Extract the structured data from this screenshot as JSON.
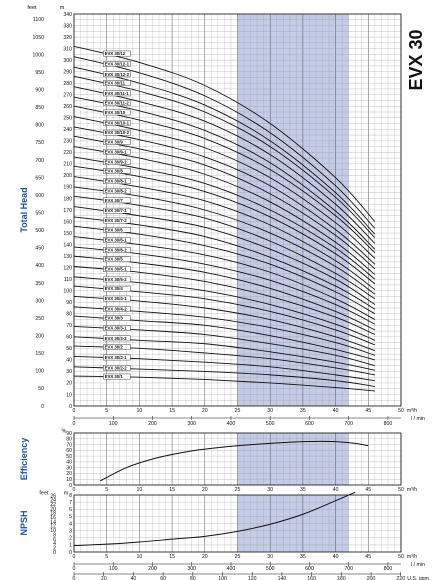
{
  "chart_data": [
    {
      "type": "line",
      "title": "EVX 30",
      "ylabel": "Total Head",
      "y_units_left": "feet",
      "y_units_right": "m",
      "x_units_top": "m³/h",
      "x_units_bottom": "l / min",
      "xlim": [
        0,
        50
      ],
      "ylim": [
        0,
        340
      ],
      "x_ticks": [
        0,
        5,
        10,
        15,
        20,
        25,
        30,
        35,
        40,
        45,
        50
      ],
      "x_lmin_ticks": [
        0,
        100,
        200,
        300,
        400,
        500,
        600,
        700,
        800
      ],
      "y_m_ticks": [
        0,
        10,
        20,
        30,
        40,
        50,
        60,
        70,
        80,
        90,
        100,
        110,
        120,
        130,
        140,
        150,
        160,
        170,
        180,
        190,
        200,
        210,
        220,
        230,
        240,
        250,
        260,
        270,
        280,
        290,
        300,
        310,
        320,
        330,
        340
      ],
      "y_feet_ticks": [
        0,
        50,
        100,
        150,
        200,
        250,
        300,
        350,
        400,
        450,
        500,
        550,
        600,
        650,
        700,
        750,
        800,
        850,
        900,
        950,
        1000,
        1050,
        1100
      ],
      "highlight_range": [
        25,
        42
      ],
      "grid": true,
      "series": [
        {
          "name": "EVX 30/12",
          "x": [
            0,
            10,
            20,
            30,
            40,
            46
          ],
          "values": [
            312,
            298,
            278,
            245,
            198,
            160
          ]
        },
        {
          "name": "EVX 30/12-1",
          "x": [
            0,
            10,
            20,
            30,
            40,
            46
          ],
          "values": [
            303,
            289,
            269,
            237,
            191,
            154
          ]
        },
        {
          "name": "EVX 30/12-2",
          "x": [
            0,
            10,
            20,
            30,
            40,
            46
          ],
          "values": [
            294,
            280,
            261,
            230,
            185,
            149
          ]
        },
        {
          "name": "EVX 30/11",
          "x": [
            0,
            10,
            20,
            30,
            40,
            46
          ],
          "values": [
            286,
            273,
            255,
            225,
            181,
            146
          ]
        },
        {
          "name": "EVX 30/11-1",
          "x": [
            0,
            10,
            20,
            30,
            40,
            46
          ],
          "values": [
            277,
            264,
            247,
            218,
            175,
            141
          ]
        },
        {
          "name": "EVX 30/11-2",
          "x": [
            0,
            10,
            20,
            30,
            40,
            46
          ],
          "values": [
            268,
            256,
            239,
            211,
            169,
            136
          ]
        },
        {
          "name": "EVX 30/10",
          "x": [
            0,
            10,
            20,
            30,
            40,
            46
          ],
          "values": [
            260,
            248,
            232,
            205,
            165,
            133
          ]
        },
        {
          "name": "EVX 30/10-1",
          "x": [
            0,
            10,
            20,
            30,
            40,
            46
          ],
          "values": [
            251,
            239,
            224,
            198,
            159,
            128
          ]
        },
        {
          "name": "EVX 30/10-2",
          "x": [
            0,
            10,
            20,
            30,
            40,
            46
          ],
          "values": [
            242,
            231,
            216,
            191,
            153,
            123
          ]
        },
        {
          "name": "EVX 30/9",
          "x": [
            0,
            10,
            20,
            30,
            40,
            46
          ],
          "values": [
            234,
            223,
            209,
            184,
            148,
            119
          ]
        },
        {
          "name": "EVX 30/9-1",
          "x": [
            0,
            10,
            20,
            30,
            40,
            46
          ],
          "values": [
            225,
            215,
            201,
            177,
            142,
            114
          ]
        },
        {
          "name": "EVX 30/9-2",
          "x": [
            0,
            10,
            20,
            30,
            40,
            46
          ],
          "values": [
            216,
            206,
            193,
            170,
            137,
            110
          ]
        },
        {
          "name": "EVX 30/8",
          "x": [
            0,
            10,
            20,
            30,
            40,
            46
          ],
          "values": [
            208,
            199,
            186,
            164,
            132,
            106
          ]
        },
        {
          "name": "EVX 30/8-1",
          "x": [
            0,
            10,
            20,
            30,
            40,
            46
          ],
          "values": [
            199,
            190,
            178,
            157,
            126,
            101
          ]
        },
        {
          "name": "EVX 30/8-2",
          "x": [
            0,
            10,
            20,
            30,
            40,
            46
          ],
          "values": [
            190,
            182,
            170,
            150,
            121,
            97
          ]
        },
        {
          "name": "EVX 30/7",
          "x": [
            0,
            10,
            20,
            30,
            40,
            46
          ],
          "values": [
            182,
            174,
            163,
            143,
            115,
            93
          ]
        },
        {
          "name": "EVX 30/7-1",
          "x": [
            0,
            10,
            20,
            30,
            40,
            46
          ],
          "values": [
            173,
            165,
            155,
            136,
            110,
            88
          ]
        },
        {
          "name": "EVX 30/7-2",
          "x": [
            0,
            10,
            20,
            30,
            40,
            46
          ],
          "values": [
            164,
            157,
            147,
            129,
            104,
            84
          ]
        },
        {
          "name": "EVX 30/6",
          "x": [
            0,
            10,
            20,
            30,
            40,
            46
          ],
          "values": [
            156,
            149,
            139,
            123,
            99,
            80
          ]
        },
        {
          "name": "EVX 30/6-1",
          "x": [
            0,
            10,
            20,
            30,
            40,
            46
          ],
          "values": [
            147,
            140,
            131,
            116,
            93,
            75
          ]
        },
        {
          "name": "EVX 30/6-2",
          "x": [
            0,
            10,
            20,
            30,
            40,
            46
          ],
          "values": [
            138,
            132,
            123,
            109,
            88,
            71
          ]
        },
        {
          "name": "EVX 30/5",
          "x": [
            0,
            10,
            20,
            30,
            40,
            46
          ],
          "values": [
            130,
            124,
            116,
            102,
            82,
            66
          ]
        },
        {
          "name": "EVX 30/5-1",
          "x": [
            0,
            10,
            20,
            30,
            40,
            46
          ],
          "values": [
            121,
            116,
            108,
            95,
            77,
            62
          ]
        },
        {
          "name": "EVX 30/5-2",
          "x": [
            0,
            10,
            20,
            30,
            40,
            46
          ],
          "values": [
            112,
            107,
            100,
            88,
            71,
            57
          ]
        },
        {
          "name": "EVX 30/4",
          "x": [
            0,
            10,
            20,
            30,
            40,
            46
          ],
          "values": [
            104,
            99,
            93,
            82,
            66,
            53
          ]
        },
        {
          "name": "EVX 30/4-1",
          "x": [
            0,
            10,
            20,
            30,
            40,
            46
          ],
          "values": [
            95,
            91,
            85,
            75,
            60,
            48
          ]
        },
        {
          "name": "EVX 30/4-2",
          "x": [
            0,
            10,
            20,
            30,
            40,
            46
          ],
          "values": [
            86,
            82,
            77,
            68,
            55,
            44
          ]
        },
        {
          "name": "EVX 30/3",
          "x": [
            0,
            10,
            20,
            30,
            40,
            46
          ],
          "values": [
            78,
            74,
            70,
            61,
            49,
            40
          ]
        },
        {
          "name": "EVX 30/3-1",
          "x": [
            0,
            10,
            20,
            30,
            40,
            46
          ],
          "values": [
            69,
            66,
            62,
            54,
            44,
            35
          ]
        },
        {
          "name": "EVX 30/3-2",
          "x": [
            0,
            10,
            20,
            30,
            40,
            46
          ],
          "values": [
            60,
            57,
            54,
            47,
            38,
            31
          ]
        },
        {
          "name": "EVX 30/2",
          "x": [
            0,
            10,
            20,
            30,
            40,
            46
          ],
          "values": [
            52,
            50,
            46,
            41,
            33,
            27
          ]
        },
        {
          "name": "EVX 30/2-1",
          "x": [
            0,
            10,
            20,
            30,
            40,
            46
          ],
          "values": [
            43,
            41,
            38,
            34,
            27,
            22
          ]
        },
        {
          "name": "EVX 30/2-2",
          "x": [
            0,
            10,
            20,
            30,
            40,
            46
          ],
          "values": [
            34,
            32,
            30,
            27,
            22,
            17
          ]
        },
        {
          "name": "EVX 30/1",
          "x": [
            0,
            10,
            20,
            30,
            40,
            46
          ],
          "values": [
            26,
            25,
            23,
            20,
            16,
            13
          ]
        }
      ]
    },
    {
      "type": "line",
      "ylabel": "Efficiency",
      "y_units": "%",
      "xlim": [
        0,
        50
      ],
      "ylim": [
        0,
        90
      ],
      "y_ticks": [
        0,
        10,
        20,
        30,
        40,
        50,
        60,
        70,
        80,
        90
      ],
      "x_ticks": [
        0,
        5,
        10,
        15,
        20,
        25,
        30,
        35,
        40,
        45,
        50
      ],
      "x_units": "m³/h",
      "highlight_range": [
        25,
        42
      ],
      "series": [
        {
          "x": [
            4,
            8,
            12,
            16,
            20,
            25,
            30,
            35,
            38,
            40,
            43,
            45
          ],
          "values": [
            7,
            30,
            45,
            55,
            62,
            68,
            72,
            75,
            75.5,
            75,
            72,
            68
          ]
        }
      ]
    },
    {
      "type": "line",
      "ylabel": "NPSH",
      "y_units_left": "feet",
      "y_units_right": "m",
      "xlim": [
        0,
        50
      ],
      "ylim": [
        0,
        8
      ],
      "y_m_ticks": [
        0,
        1,
        2,
        3,
        4,
        5,
        6,
        7,
        8
      ],
      "y_feet_ticks": [
        0,
        2,
        4,
        6,
        8,
        10,
        12,
        14,
        16,
        18,
        20,
        22,
        24,
        26
      ],
      "x_ticks": [
        0,
        5,
        10,
        15,
        20,
        25,
        30,
        35,
        40,
        45,
        50
      ],
      "x_units": "m³/h",
      "x_lmin_ticks": [
        0,
        100,
        200,
        300,
        400,
        500,
        600,
        700,
        800
      ],
      "x_lmin_units": "l / min",
      "x_gpm_ticks": [
        0,
        20,
        40,
        60,
        80,
        100,
        120,
        140,
        160,
        180,
        200,
        220
      ],
      "x_gpm_units": "U.S. gpm",
      "highlight_range": [
        25,
        42
      ],
      "series": [
        {
          "x": [
            0,
            5,
            10,
            15,
            20,
            25,
            30,
            35,
            40,
            43
          ],
          "values": [
            0.9,
            1.1,
            1.4,
            1.8,
            2.2,
            2.9,
            3.9,
            5.3,
            7.2,
            8.4
          ]
        }
      ]
    }
  ]
}
